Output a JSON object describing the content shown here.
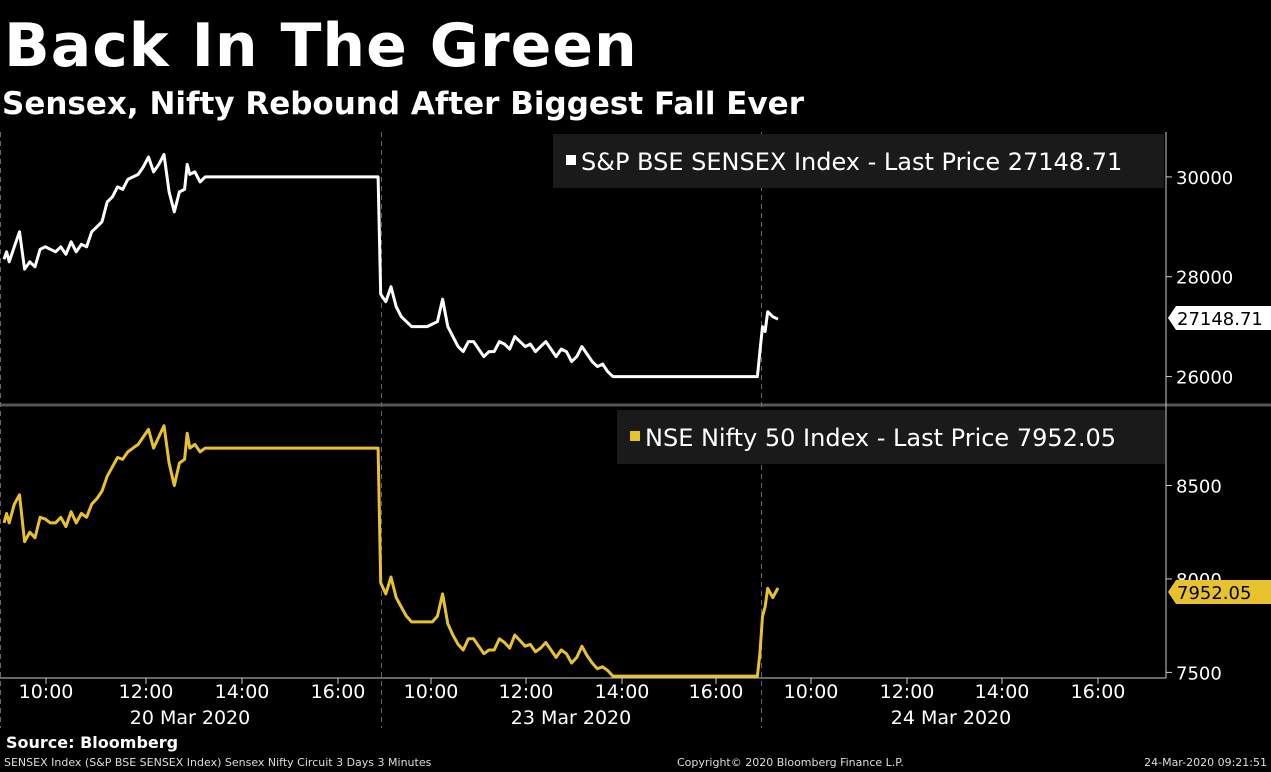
{
  "header": {
    "title": "Back In The Green",
    "subtitle": "Sensex, Nifty Rebound After Biggest Fall Ever"
  },
  "footer": {
    "source": "Source: Bloomberg",
    "description": "SENSEX Index (S&P BSE SENSEX Index) Sensex Nifty Circuit 3 Days 3 Minutes",
    "copyright": "Copyright© 2020 Bloomberg Finance L.P.",
    "timestamp": "24-Mar-2020 09:21:51"
  },
  "colors": {
    "background": "#000000",
    "sensex": "#ffffff",
    "nifty": "#e8c22c",
    "legend_bg": "#1a1a1a",
    "grid": "#666666"
  },
  "chart_data": [
    {
      "type": "line",
      "title": "",
      "legend_position": "top-right",
      "series": [
        {
          "name": "S&P BSE SENSEX Index - Last Price",
          "last_value_label": "27148.71",
          "x": [
            0,
            0.05,
            0.1,
            0.2,
            0.3,
            0.4,
            0.5,
            0.6,
            0.7,
            0.8,
            0.9,
            1.0,
            1.1,
            1.2,
            1.3,
            1.4,
            1.5,
            1.6,
            1.7,
            1.8,
            1.9,
            2.0,
            2.1,
            2.2,
            2.3,
            2.4,
            2.5,
            2.6,
            2.7,
            2.8,
            2.9,
            3.0,
            3.1,
            3.2,
            3.3,
            3.4,
            3.5,
            3.55,
            3.6,
            3.7,
            3.8,
            3.9,
            4.0,
            4.1,
            4.2,
            4.3,
            4.4,
            4.5,
            4.6,
            4.7,
            4.8,
            4.9,
            5.0,
            5.2,
            5.4,
            5.6,
            5.8,
            6.0,
            6.2,
            6.4,
            6.5,
            6.7,
            6.8,
            6.9,
            7.0,
            7.2,
            7.25,
            7.3,
            7.4,
            7.5,
            7.6,
            7.7,
            7.8,
            7.9,
            8.0,
            8.1,
            8.2,
            8.3,
            8.4,
            8.5,
            8.6,
            8.7,
            8.8,
            8.9,
            9.0,
            9.1,
            9.2,
            9.3,
            9.4,
            9.5,
            9.6,
            9.7,
            9.8,
            9.9,
            10.0,
            10.1,
            10.2,
            10.3,
            10.4,
            10.5,
            10.6,
            10.7,
            10.8,
            10.9,
            11.0,
            11.1,
            11.2,
            11.3,
            11.4,
            11.5,
            11.6,
            11.7,
            11.8,
            11.9,
            12.0,
            12.1,
            12.2,
            12.3,
            12.4,
            12.5,
            12.6,
            12.7,
            12.8,
            12.9,
            13.0,
            13.2,
            13.4,
            13.6,
            13.8,
            14.0,
            14.2,
            14.3,
            14.4,
            14.5,
            14.6,
            14.65,
            14.7,
            14.75,
            14.8,
            14.9,
            15.0
          ],
          "values": [
            28350,
            28500,
            28300,
            28600,
            28900,
            28150,
            28300,
            28200,
            28550,
            28600,
            28550,
            28500,
            28600,
            28450,
            28700,
            28500,
            28650,
            28600,
            28900,
            29000,
            29100,
            29500,
            29600,
            29800,
            29750,
            29950,
            30000,
            30050,
            30200,
            30400,
            30100,
            30250,
            30450,
            29700,
            29300,
            29700,
            29750,
            30250,
            30050,
            30100,
            29900,
            30000,
            30000,
            30000,
            30000,
            30000,
            30000,
            30000,
            30000,
            30000,
            30000,
            30000,
            30000,
            30000,
            30000,
            30000,
            30000,
            30000,
            30000,
            30000,
            30000,
            30000,
            30000,
            30000,
            30000,
            30000,
            30000,
            27650,
            27500,
            27800,
            27400,
            27200,
            27100,
            27000,
            27000,
            27000,
            27000,
            27050,
            27100,
            27550,
            27000,
            26800,
            26600,
            26500,
            26700,
            26700,
            26550,
            26400,
            26500,
            26500,
            26700,
            26650,
            26550,
            26800,
            26700,
            26600,
            26650,
            26500,
            26600,
            26700,
            26550,
            26400,
            26550,
            26500,
            26300,
            26400,
            26600,
            26450,
            26300,
            26200,
            26250,
            26100,
            26000,
            26000,
            26000,
            26000,
            26000,
            26000,
            26000,
            26000,
            26000,
            26000,
            26000,
            26000,
            26000,
            26000,
            26000,
            26000,
            26000,
            26000,
            26000,
            26000,
            26000,
            26000,
            26000,
            26500,
            27000,
            26900,
            27300,
            27200,
            27148.71
          ],
          "yticks": [
            26000,
            28000,
            30000
          ],
          "ylim": [
            25450,
            30900
          ]
        },
        {
          "name": "NSE Nifty 50 Index - Last Price",
          "last_value_label": "7952.05",
          "x": [
            0,
            0.05,
            0.1,
            0.2,
            0.3,
            0.4,
            0.5,
            0.6,
            0.7,
            0.8,
            0.9,
            1.0,
            1.1,
            1.2,
            1.3,
            1.4,
            1.5,
            1.6,
            1.7,
            1.8,
            1.9,
            2.0,
            2.1,
            2.2,
            2.3,
            2.4,
            2.5,
            2.6,
            2.7,
            2.8,
            2.9,
            3.0,
            3.1,
            3.2,
            3.3,
            3.4,
            3.5,
            3.55,
            3.6,
            3.7,
            3.8,
            3.9,
            4.0,
            4.1,
            4.2,
            4.3,
            4.4,
            4.5,
            4.6,
            4.7,
            4.8,
            4.9,
            5.0,
            5.2,
            5.4,
            5.6,
            5.8,
            6.0,
            6.2,
            6.4,
            6.5,
            6.7,
            6.8,
            6.9,
            7.0,
            7.2,
            7.25,
            7.3,
            7.4,
            7.5,
            7.6,
            7.7,
            7.8,
            7.9,
            8.0,
            8.1,
            8.2,
            8.3,
            8.4,
            8.5,
            8.6,
            8.7,
            8.8,
            8.9,
            9.0,
            9.1,
            9.2,
            9.3,
            9.4,
            9.5,
            9.6,
            9.7,
            9.8,
            9.9,
            10.0,
            10.1,
            10.2,
            10.3,
            10.4,
            10.5,
            10.6,
            10.7,
            10.8,
            10.9,
            11.0,
            11.1,
            11.2,
            11.3,
            11.4,
            11.5,
            11.6,
            11.7,
            11.8,
            11.9,
            12.0,
            12.1,
            12.2,
            12.3,
            12.4,
            12.5,
            12.6,
            12.7,
            12.8,
            12.9,
            13.0,
            13.2,
            13.4,
            13.6,
            13.8,
            14.0,
            14.2,
            14.3,
            14.4,
            14.5,
            14.6,
            14.65,
            14.7,
            14.75,
            14.8,
            14.9,
            15.0
          ],
          "values": [
            8300,
            8350,
            8300,
            8400,
            8450,
            8200,
            8250,
            8220,
            8330,
            8320,
            8300,
            8300,
            8330,
            8280,
            8360,
            8300,
            8350,
            8330,
            8400,
            8430,
            8470,
            8550,
            8600,
            8650,
            8640,
            8680,
            8700,
            8720,
            8760,
            8800,
            8700,
            8760,
            8820,
            8620,
            8500,
            8620,
            8640,
            8780,
            8700,
            8720,
            8680,
            8700,
            8700,
            8700,
            8700,
            8700,
            8700,
            8700,
            8700,
            8700,
            8700,
            8700,
            8700,
            8700,
            8700,
            8700,
            8700,
            8700,
            8700,
            8700,
            8700,
            8700,
            8700,
            8700,
            8700,
            8700,
            8700,
            7980,
            7920,
            8010,
            7900,
            7850,
            7800,
            7770,
            7770,
            7770,
            7770,
            7770,
            7800,
            7920,
            7760,
            7700,
            7650,
            7620,
            7680,
            7680,
            7640,
            7600,
            7620,
            7620,
            7680,
            7660,
            7630,
            7700,
            7670,
            7640,
            7650,
            7610,
            7630,
            7660,
            7620,
            7580,
            7620,
            7600,
            7550,
            7580,
            7640,
            7590,
            7550,
            7520,
            7530,
            7510,
            7480,
            7480,
            7480,
            7480,
            7480,
            7480,
            7480,
            7480,
            7480,
            7480,
            7480,
            7480,
            7480,
            7480,
            7480,
            7480,
            7480,
            7480,
            7480,
            7480,
            7480,
            7480,
            7480,
            7600,
            7800,
            7850,
            7950,
            7900,
            7952.05
          ],
          "yticks": [
            7500,
            8000,
            8500
          ],
          "ylim": [
            7470,
            8920
          ]
        }
      ],
      "x_ticks": [
        "10:00",
        "12:00",
        "14:00",
        "16:00",
        "10:00",
        "12:00",
        "14:00",
        "16:00",
        "10:00",
        "12:00",
        "14:00",
        "16:00"
      ],
      "x_dates": [
        "20 Mar 2020",
        "23 Mar 2020",
        "24 Mar 2020"
      ],
      "grid": false
    }
  ]
}
